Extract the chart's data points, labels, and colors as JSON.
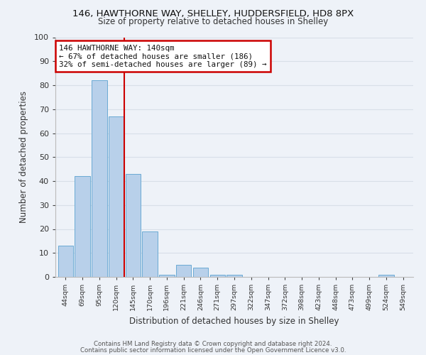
{
  "title1": "146, HAWTHORNE WAY, SHELLEY, HUDDERSFIELD, HD8 8PX",
  "title2": "Size of property relative to detached houses in Shelley",
  "xlabel": "Distribution of detached houses by size in Shelley",
  "ylabel": "Number of detached properties",
  "bar_labels": [
    "44sqm",
    "69sqm",
    "95sqm",
    "120sqm",
    "145sqm",
    "170sqm",
    "196sqm",
    "221sqm",
    "246sqm",
    "271sqm",
    "297sqm",
    "322sqm",
    "347sqm",
    "372sqm",
    "398sqm",
    "423sqm",
    "448sqm",
    "473sqm",
    "499sqm",
    "524sqm",
    "549sqm"
  ],
  "bar_values": [
    13,
    42,
    82,
    67,
    43,
    19,
    1,
    5,
    4,
    1,
    1,
    0,
    0,
    0,
    0,
    0,
    0,
    0,
    0,
    1,
    0
  ],
  "bar_color": "#b8d0ea",
  "bar_edgecolor": "#6aaad4",
  "annotation_line1": "146 HAWTHORNE WAY: 140sqm",
  "annotation_line2": "← 67% of detached houses are smaller (186)",
  "annotation_line3": "32% of semi-detached houses are larger (89) →",
  "annotation_box_color": "#ffffff",
  "annotation_box_edgecolor": "#cc0000",
  "vline_color": "#cc0000",
  "ylim": [
    0,
    100
  ],
  "background_color": "#eef2f8",
  "grid_color": "#d8dfe8",
  "footer1": "Contains HM Land Registry data © Crown copyright and database right 2024.",
  "footer2": "Contains public sector information licensed under the Open Government Licence v3.0."
}
